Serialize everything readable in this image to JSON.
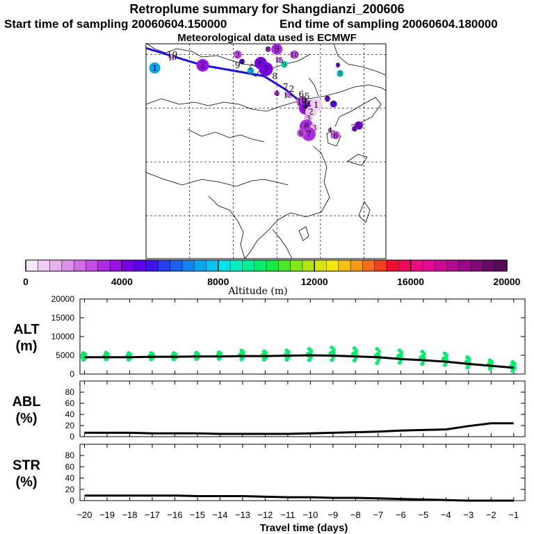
{
  "header": {
    "title": "Retroplume summary for Shangdianzi_200606",
    "start_label": "Start time of sampling 20060604.150000",
    "end_label": "End time of sampling 20060604.180000",
    "met_label": "Meteorological data used is ECMWF"
  },
  "colorbar": {
    "tick_labels": [
      "0",
      "4000",
      "8000",
      "12000",
      "16000",
      "20000"
    ],
    "title": "Altitude (m)",
    "range": [
      0,
      20000
    ],
    "colors": [
      "#f7e8f8",
      "#f0cdf2",
      "#e7b1ee",
      "#dd92ea",
      "#d36fe6",
      "#c24de4",
      "#ad2be4",
      "#9a12e6",
      "#7b00e8",
      "#5b00ec",
      "#3e14ee",
      "#2540ef",
      "#1a62f0",
      "#1284f0",
      "#0aa6f0",
      "#03c6f0",
      "#00e3ea",
      "#00f0c4",
      "#00ef96",
      "#00ee6a",
      "#14ec42",
      "#4aea22",
      "#84e818",
      "#b2e412",
      "#d8e60c",
      "#f4e808",
      "#f6c00c",
      "#f69a12",
      "#f47018",
      "#f2401e",
      "#ee1030",
      "#f00a5a",
      "#f00a82",
      "#e60a96",
      "#cc0a96",
      "#b40a90",
      "#9a0a86",
      "#800a78",
      "#680a68",
      "#560a58"
    ]
  },
  "map": {
    "points": [
      {
        "lon": 82,
        "lat": 47.5,
        "label": "1",
        "alt": 7000,
        "r": 8
      },
      {
        "lon": 86,
        "lat": 49.5,
        "label": "10",
        "alt": 1500,
        "r": 4
      },
      {
        "lon": 93,
        "lat": 48,
        "label": "2",
        "alt": 3500,
        "r": 9
      },
      {
        "lon": 101,
        "lat": 50,
        "label": "3",
        "alt": 2500,
        "r": 6
      },
      {
        "lon": 102,
        "lat": 48.7,
        "label": "4",
        "alt": 4600,
        "r": 4
      },
      {
        "lon": 104,
        "lat": 47,
        "label": "5",
        "alt": 7500,
        "r": 5
      },
      {
        "lon": 106.3,
        "lat": 48.4,
        "label": "6",
        "alt": 4000,
        "r": 9
      },
      {
        "lon": 107.5,
        "lat": 47.3,
        "label": "7",
        "alt": 4100,
        "r": 10
      },
      {
        "lon": 108,
        "lat": 51,
        "label": "8",
        "alt": 3000,
        "r": 4
      },
      {
        "lon": 110,
        "lat": 51,
        "label": "9",
        "alt": 3000,
        "r": 8
      },
      {
        "lon": 111.7,
        "lat": 48.2,
        "label": "9",
        "alt": 8600,
        "r": 5
      },
      {
        "lon": 114,
        "lat": 50,
        "label": "10",
        "alt": 2500,
        "r": 6
      },
      {
        "lon": 110.5,
        "lat": 49,
        "label": "15",
        "alt": 2000,
        "r": 4
      },
      {
        "lon": 110,
        "lat": 42.8,
        "label": "4",
        "alt": 2800,
        "r": 4
      },
      {
        "lon": 112.5,
        "lat": 42.5,
        "label": "13",
        "alt": 2300,
        "r": 4
      },
      {
        "lon": 115.8,
        "lat": 41.2,
        "label": "13",
        "alt": 2700,
        "r": 8
      },
      {
        "lon": 118,
        "lat": 41,
        "label": "14",
        "alt": 1600,
        "r": 5
      },
      {
        "lon": 119,
        "lat": 40.6,
        "label": "1",
        "alt": 500,
        "r": 9
      },
      {
        "lon": 116.5,
        "lat": 40,
        "label": "9",
        "alt": 3500,
        "r": 9
      },
      {
        "lon": 117.8,
        "lat": 39.3,
        "label": "2",
        "alt": 700,
        "r": 8
      },
      {
        "lon": 117.2,
        "lat": 38.2,
        "label": "3",
        "alt": 1000,
        "r": 6
      },
      {
        "lon": 116.8,
        "lat": 36.6,
        "label": "8",
        "alt": 3300,
        "r": 10
      },
      {
        "lon": 118.6,
        "lat": 36.4,
        "label": "3",
        "alt": 600,
        "r": 6
      },
      {
        "lon": 117.3,
        "lat": 35.2,
        "label": "7",
        "alt": 3000,
        "r": 10
      },
      {
        "lon": 115.6,
        "lat": 35.4,
        "label": "6",
        "alt": 2800,
        "r": 6
      },
      {
        "lon": 122.2,
        "lat": 36,
        "label": "4",
        "alt": 2200,
        "r": 3
      },
      {
        "lon": 122.8,
        "lat": 35,
        "label": "5",
        "alt": 2200,
        "r": 3
      },
      {
        "lon": 123.5,
        "lat": 35,
        "label": "6",
        "alt": 2800,
        "r": 6
      },
      {
        "lon": 127.8,
        "lat": 36.2,
        "label": "4",
        "alt": 3600,
        "r": 4
      },
      {
        "lon": 128.8,
        "lat": 36.8,
        "label": "6",
        "alt": 4000,
        "r": 6
      },
      {
        "lon": 121.6,
        "lat": 41.8,
        "label": "2",
        "alt": 4200,
        "r": 4
      },
      {
        "lon": 123,
        "lat": 40.8,
        "label": "7",
        "alt": 4800,
        "r": 5
      },
      {
        "lon": 124.5,
        "lat": 46.5,
        "label": "8",
        "alt": 8200,
        "r": 5
      },
      {
        "lon": 124,
        "lat": 48,
        "label": "7",
        "alt": 4500,
        "r": 3
      }
    ],
    "path_labels": [
      {
        "lon": 86,
        "lat": 50,
        "label": "10"
      },
      {
        "lon": 101,
        "lat": 48,
        "label": "9"
      },
      {
        "lon": 109.5,
        "lat": 46,
        "label": "8"
      },
      {
        "lon": 112,
        "lat": 44,
        "label": "7"
      },
      {
        "lon": 113.4,
        "lat": 43.6,
        "label": "2"
      },
      {
        "lon": 115.6,
        "lat": 42.6,
        "label": "6"
      },
      {
        "lon": 116.9,
        "lat": 42.2,
        "label": "5"
      },
      {
        "lon": 116.2,
        "lat": 41.6,
        "label": "6"
      },
      {
        "lon": 116.3,
        "lat": 40.7,
        "label": "2"
      },
      {
        "lon": 116.9,
        "lat": 40.8,
        "label": "9"
      }
    ]
  },
  "chart_data": [
    {
      "type": "scatter",
      "name": "ALT",
      "ylabel": "ALT (m)",
      "ylabel_lines": [
        "ALT",
        "(m)"
      ],
      "ylim": [
        0,
        20000
      ],
      "yticks": [
        0,
        5000,
        10000,
        15000,
        20000
      ],
      "x": [
        -20,
        -19,
        -18,
        -17,
        -16,
        -15,
        -14,
        -13,
        -12,
        -11,
        -10,
        -9,
        -8,
        -7,
        -6,
        -5,
        -4,
        -3,
        -2,
        -1
      ],
      "mean_line": [
        4500,
        4500,
        4500,
        4600,
        4600,
        4700,
        4700,
        4800,
        4800,
        4900,
        5000,
        4900,
        4700,
        4500,
        4000,
        3700,
        3300,
        2700,
        2200,
        1700
      ],
      "spread_low": [
        3800,
        3900,
        3800,
        3900,
        3900,
        4000,
        4000,
        3900,
        3800,
        3800,
        3700,
        3700,
        3600,
        2900,
        3000,
        2700,
        2400,
        1700,
        1400,
        800
      ],
      "spread_high": [
        5600,
        5700,
        5600,
        5600,
        5600,
        5700,
        5800,
        6300,
        6100,
        6300,
        6700,
        7100,
        6900,
        6700,
        6300,
        6000,
        5500,
        4500,
        3700,
        3200
      ],
      "point_color": "#00ee6a",
      "line_color": "#000000"
    },
    {
      "type": "line",
      "name": "ABL",
      "ylabel": "ABL (%)",
      "ylabel_lines": [
        "ABL",
        "(%)"
      ],
      "ylim": [
        0,
        100
      ],
      "yticks": [
        0,
        20,
        40,
        60,
        80
      ],
      "x": [
        -20,
        -19,
        -18,
        -17,
        -16,
        -15,
        -14,
        -13,
        -12,
        -11,
        -10,
        -9,
        -8,
        -7,
        -6,
        -5,
        -4,
        -3,
        -2,
        -1
      ],
      "y": [
        7,
        7,
        7,
        6,
        6,
        6,
        5,
        5,
        5,
        5,
        6,
        7,
        8,
        9,
        11,
        12,
        13,
        19,
        24,
        24
      ],
      "line_color": "#000000"
    },
    {
      "type": "line",
      "name": "STR",
      "ylabel": "STR (%)",
      "ylabel_lines": [
        "STR",
        "(%)"
      ],
      "ylim": [
        0,
        100
      ],
      "yticks": [
        0,
        20,
        40,
        60,
        80
      ],
      "x": [
        -20,
        -19,
        -18,
        -17,
        -16,
        -15,
        -14,
        -13,
        -12,
        -11,
        -10,
        -9,
        -8,
        -7,
        -6,
        -5,
        -4,
        -3,
        -2,
        -1
      ],
      "y": [
        9,
        9,
        9,
        9,
        9,
        8,
        8,
        8,
        7,
        6,
        6,
        5,
        5,
        4,
        3,
        2,
        1,
        0,
        0,
        0
      ],
      "line_color": "#000000"
    }
  ],
  "xaxis": {
    "title": "Travel time (days)",
    "tick_labels": [
      "−20",
      "−19",
      "−18",
      "−17",
      "−16",
      "−15",
      "−14",
      "−13",
      "−12",
      "−11",
      "−10",
      "−9",
      "−8",
      "−7",
      "−6",
      "−5",
      "−4",
      "−3",
      "−2",
      "−1"
    ]
  }
}
